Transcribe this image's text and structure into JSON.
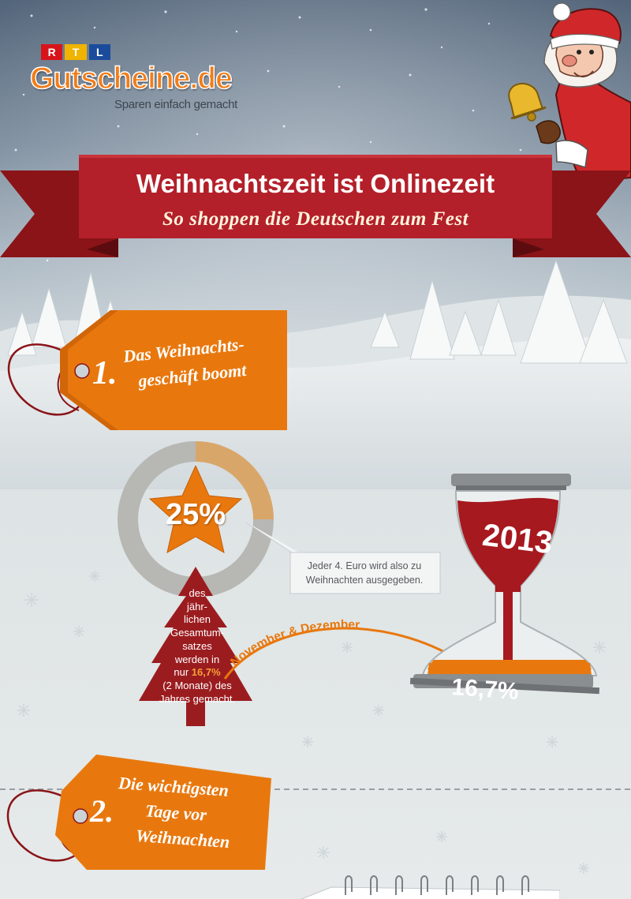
{
  "brand": {
    "badge": [
      "R",
      "T",
      "L"
    ],
    "name": "Gutscheine.de",
    "tagline": "Sparen einfach gemacht"
  },
  "header": {
    "title": "Weihnachtszeit ist Onlinezeit",
    "subtitle": "So shoppen die Deutschen zum Fest"
  },
  "section1": {
    "number": "1.",
    "line1": "Das Weihnachts-",
    "line2": "geschäft boomt"
  },
  "stat": {
    "percent": "25%",
    "share": 0.25,
    "tree_lines": [
      "des",
      "jähr-",
      "lichen",
      "Gesamtum-",
      "satzes",
      "werden in"
    ],
    "tree_line7_pre": "nur ",
    "tree_line7_hl": "16,7%",
    "tree_line8": "(2 Monate) des",
    "tree_line9": "Jahres gemacht.",
    "callout_line1": "Jeder 4. Euro wird also zu",
    "callout_line2": "Weihnachten ausgegeben.",
    "arrow_label": "November & Dezember",
    "year": "2013",
    "sand_percent": "16,7%"
  },
  "section2": {
    "number": "2.",
    "line1": "Die wichtigsten",
    "line2": "Tage vor",
    "line3": "Weihnachten"
  },
  "colors": {
    "brand_orange": "#f07d1a",
    "ribbon_red": "#b3202a",
    "tag_orange": "#e8780e",
    "tree_red": "#9b1c1f",
    "donut_gray": "#b7b7b4",
    "donut_tan": "#d9a66a",
    "rtl_red": "#d7141a",
    "rtl_yellow": "#f0b400",
    "rtl_blue": "#1b4c9c"
  },
  "icons": [
    "santa-icon",
    "bell-icon",
    "star-icon",
    "hourglass-icon",
    "snowflake-icon",
    "tree-icon",
    "price-tag-icon"
  ]
}
